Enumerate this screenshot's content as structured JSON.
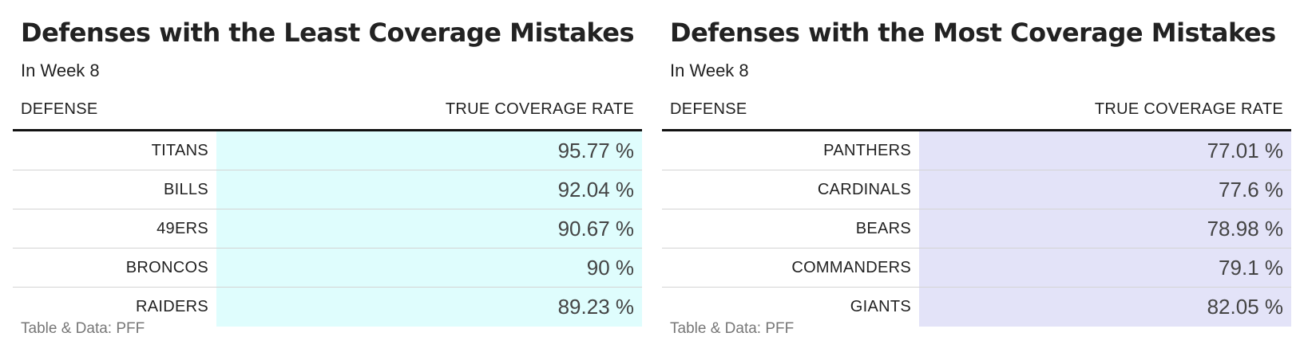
{
  "chart_data": [
    {
      "type": "table",
      "title": "Defenses with the Least Coverage Mistakes",
      "subtitle": "In Week 8",
      "columns": [
        "DEFENSE",
        "TRUE COVERAGE RATE"
      ],
      "rows": [
        {
          "team": "TITANS",
          "rate": 95.77,
          "rate_text": "95.77 %"
        },
        {
          "team": "BILLS",
          "rate": 92.04,
          "rate_text": "92.04 %"
        },
        {
          "team": "49ERS",
          "rate": 90.67,
          "rate_text": "90.67 %"
        },
        {
          "team": "BRONCOS",
          "rate": 90,
          "rate_text": "90 %"
        },
        {
          "team": "RAIDERS",
          "rate": 89.23,
          "rate_text": "89.23 %"
        }
      ],
      "rate_fill_color": "#dffdfd",
      "footer": "Table & Data: PFF"
    },
    {
      "type": "table",
      "title": "Defenses with the Most Coverage Mistakes",
      "subtitle": "In Week 8",
      "columns": [
        "DEFENSE",
        "TRUE COVERAGE RATE"
      ],
      "rows": [
        {
          "team": "PANTHERS",
          "rate": 77.01,
          "rate_text": "77.01 %"
        },
        {
          "team": "CARDINALS",
          "rate": 77.6,
          "rate_text": "77.6 %"
        },
        {
          "team": "BEARS",
          "rate": 78.98,
          "rate_text": "78.98 %"
        },
        {
          "team": "COMMANDERS",
          "rate": 79.1,
          "rate_text": "79.1 %"
        },
        {
          "team": "GIANTS",
          "rate": 82.05,
          "rate_text": "82.05 %"
        }
      ],
      "rate_fill_color": "#e3e3f8",
      "footer": "Table & Data: PFF"
    }
  ]
}
